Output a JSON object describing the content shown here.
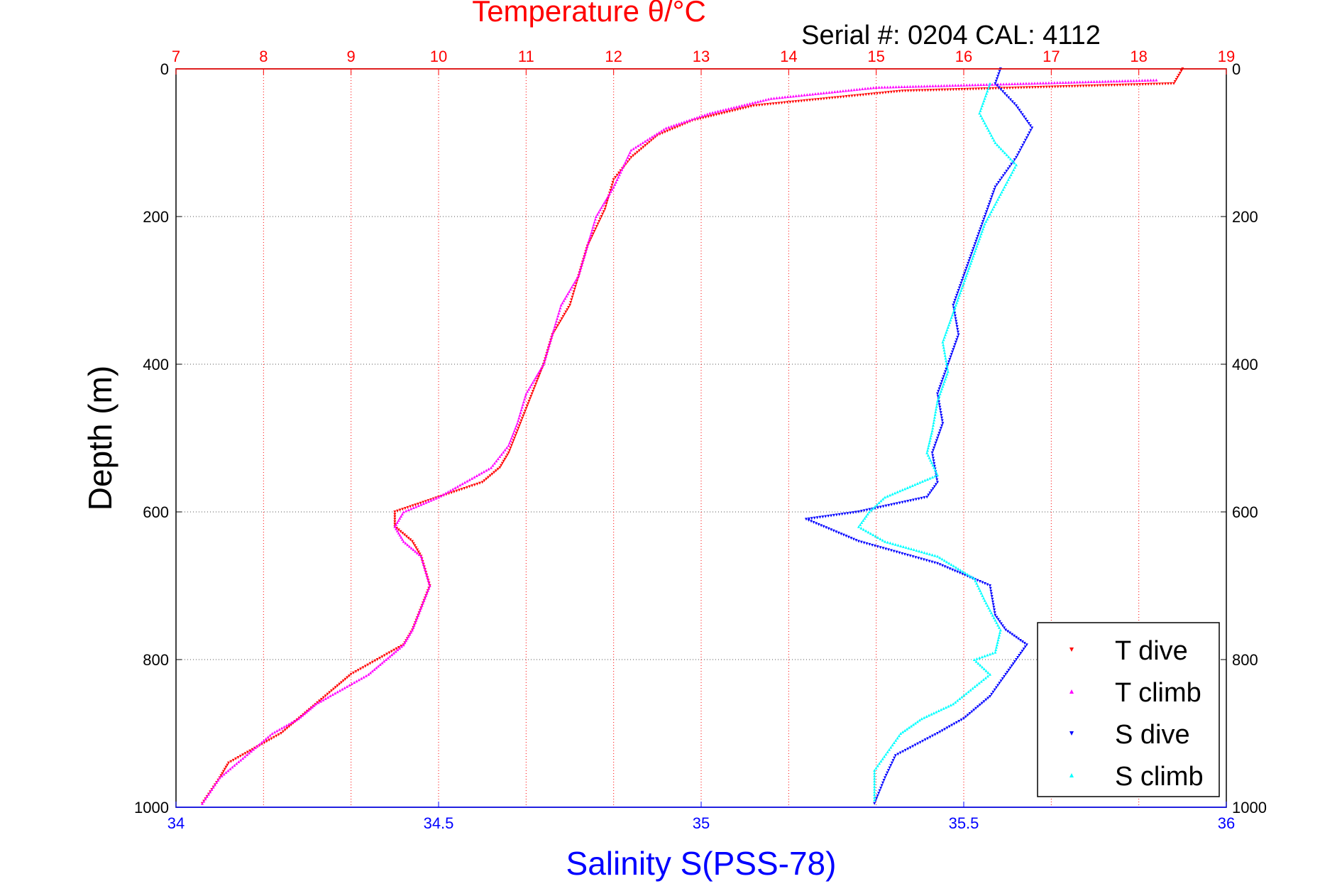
{
  "chart_data": {
    "type": "scatter",
    "title": "Temperature θ/°C",
    "subtitle": "Serial #: 0204  CAL: 4112",
    "ylabel": "Depth (m)",
    "xlabel_bottom": "Salinity S(PSS-78)",
    "xlabel_top": "Temperature θ/°C",
    "ylim": [
      1000,
      0
    ],
    "xlim_bottom": [
      34,
      36
    ],
    "xlim_top": [
      7,
      19
    ],
    "y_ticks": [
      "0",
      "200",
      "400",
      "600",
      "800",
      "1000"
    ],
    "x_ticks_bottom": [
      "34",
      "34.5",
      "35",
      "35.5",
      "36"
    ],
    "x_ticks_top": [
      "7",
      "8",
      "9",
      "10",
      "11",
      "12",
      "13",
      "14",
      "15",
      "16",
      "17",
      "18",
      "19"
    ],
    "grid": true,
    "legend_position": "bottom-right",
    "colors": {
      "temperature_axis": "#ff0000",
      "salinity_axis": "#0000ff",
      "t_dive": "#ff0000",
      "t_climb": "#ff00ff",
      "s_dive": "#0000ff",
      "s_climb": "#00ffff"
    },
    "series": [
      {
        "name": "T dive",
        "axis": "top",
        "x": [
          18.5,
          18.4,
          15.3,
          13.6,
          12.9,
          12.5,
          12.2,
          12.0,
          11.9,
          11.7,
          11.6,
          11.5,
          11.3,
          11.2,
          11.1,
          11.0,
          10.9,
          10.8,
          10.7,
          10.5,
          10.0,
          9.5,
          9.5,
          9.7,
          9.8,
          9.9,
          9.8,
          9.7,
          9.6,
          9.3,
          9.0,
          8.8,
          8.5,
          8.2,
          7.6,
          7.5,
          7.3
        ],
        "y": [
          0,
          20,
          30,
          50,
          70,
          90,
          120,
          150,
          190,
          240,
          280,
          320,
          360,
          400,
          430,
          460,
          490,
          520,
          540,
          560,
          580,
          600,
          620,
          640,
          660,
          700,
          730,
          760,
          780,
          800,
          820,
          840,
          870,
          900,
          940,
          960,
          995
        ]
      },
      {
        "name": "T climb",
        "axis": "top",
        "x": [
          18.2,
          15.0,
          13.8,
          13.1,
          12.6,
          12.2,
          12.0,
          11.8,
          11.7,
          11.6,
          11.4,
          11.3,
          11.2,
          11.0,
          10.9,
          10.8,
          10.6,
          10.0,
          9.6,
          9.5,
          9.6,
          9.8,
          9.9,
          9.8,
          9.7,
          9.6,
          9.4,
          9.2,
          8.9,
          8.6,
          8.4,
          8.1,
          7.5,
          7.3
        ],
        "y": [
          15,
          25,
          40,
          60,
          80,
          110,
          160,
          200,
          240,
          280,
          320,
          360,
          400,
          440,
          480,
          510,
          540,
          580,
          600,
          620,
          640,
          660,
          700,
          730,
          760,
          780,
          800,
          820,
          840,
          860,
          880,
          900,
          960,
          995
        ]
      },
      {
        "name": "S dive",
        "axis": "bottom",
        "x": [
          35.57,
          35.56,
          35.6,
          35.63,
          35.6,
          35.56,
          35.54,
          35.52,
          35.5,
          35.48,
          35.49,
          35.47,
          35.45,
          35.46,
          35.44,
          35.45,
          35.43,
          35.3,
          35.2,
          35.3,
          35.45,
          35.55,
          35.56,
          35.58,
          35.62,
          35.6,
          35.58,
          35.55,
          35.5,
          35.45,
          35.37,
          35.35,
          35.33
        ],
        "y": [
          0,
          20,
          50,
          80,
          120,
          160,
          200,
          240,
          280,
          320,
          360,
          400,
          440,
          480,
          520,
          560,
          580,
          600,
          610,
          640,
          670,
          700,
          740,
          760,
          780,
          800,
          820,
          850,
          880,
          900,
          930,
          960,
          995
        ]
      },
      {
        "name": "S climb",
        "axis": "bottom",
        "x": [
          35.55,
          35.53,
          35.56,
          35.6,
          35.57,
          35.54,
          35.52,
          35.5,
          35.48,
          35.46,
          35.47,
          35.45,
          35.44,
          35.43,
          35.45,
          35.35,
          35.32,
          35.3,
          35.35,
          35.45,
          35.52,
          35.54,
          35.57,
          35.56,
          35.52,
          35.55,
          35.48,
          35.42,
          35.38,
          35.33,
          35.33
        ],
        "y": [
          20,
          60,
          100,
          130,
          170,
          210,
          250,
          290,
          330,
          370,
          410,
          450,
          490,
          520,
          550,
          580,
          600,
          620,
          640,
          660,
          690,
          720,
          760,
          790,
          800,
          820,
          860,
          880,
          900,
          950,
          990
        ]
      }
    ]
  }
}
